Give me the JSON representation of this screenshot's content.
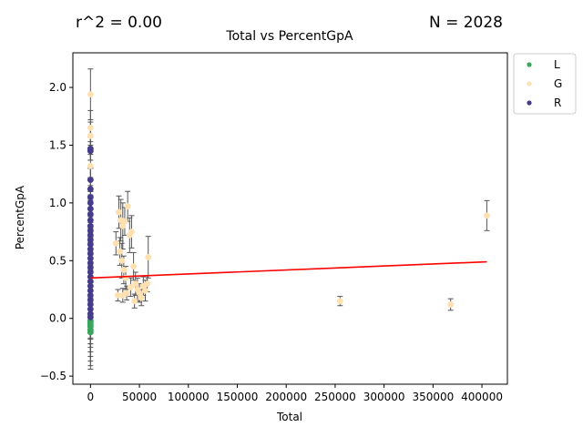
{
  "chart_data": {
    "type": "scatter",
    "title": "Total vs PercentGpA",
    "r2_text": "r^2 = 0.00",
    "n_text": "N = 2028",
    "xlabel": "Total",
    "ylabel": "PercentGpA",
    "xlim": [
      -18000,
      426000
    ],
    "ylim": [
      -0.57,
      2.3
    ],
    "xticks": [
      0,
      50000,
      100000,
      150000,
      200000,
      250000,
      300000,
      350000,
      400000
    ],
    "yticks": [
      -0.5,
      0.0,
      0.5,
      1.0,
      1.5,
      2.0
    ],
    "ytick_labels": [
      "−0.5",
      "0.0",
      "0.5",
      "1.0",
      "1.5",
      "2.0"
    ],
    "grid": false,
    "legend_position": "outside-top-right",
    "trendline": {
      "x": [
        0,
        405000
      ],
      "y": [
        0.35,
        0.49
      ],
      "color": "#ff0000"
    },
    "error_bar_color": "#555555",
    "series": [
      {
        "name": "L",
        "color": "#3aa55d",
        "points": [
          {
            "x": 0,
            "y": -0.03,
            "err": 0.06
          },
          {
            "x": 0,
            "y": -0.05,
            "err": 0.08
          },
          {
            "x": 0,
            "y": -0.07,
            "err": 0.1
          },
          {
            "x": 0,
            "y": -0.1,
            "err": 0.12
          },
          {
            "x": 0,
            "y": -0.12,
            "err": 0.1
          },
          {
            "x": 0,
            "y": -0.02,
            "err": 0.05
          }
        ]
      },
      {
        "name": "G",
        "color": "#ffe0b0",
        "points": [
          {
            "x": 0,
            "y": 1.94,
            "err": 0.22
          },
          {
            "x": 0,
            "y": 1.65,
            "err": 0.15
          },
          {
            "x": 0,
            "y": 1.58,
            "err": 0.12
          },
          {
            "x": 0,
            "y": 1.32,
            "err": 0.1
          },
          {
            "x": 0,
            "y": 1.2,
            "err": 0.1
          },
          {
            "x": 29000,
            "y": 0.92,
            "err": 0.14
          },
          {
            "x": 31000,
            "y": 0.85,
            "err": 0.18
          },
          {
            "x": 33000,
            "y": 0.8,
            "err": 0.2
          },
          {
            "x": 35000,
            "y": 0.84,
            "err": 0.12
          },
          {
            "x": 38000,
            "y": 0.97,
            "err": 0.13
          },
          {
            "x": 40000,
            "y": 0.72,
            "err": 0.15
          },
          {
            "x": 42000,
            "y": 0.75,
            "err": 0.14
          },
          {
            "x": 26000,
            "y": 0.65,
            "err": 0.1
          },
          {
            "x": 30000,
            "y": 0.58,
            "err": 0.12
          },
          {
            "x": 32000,
            "y": 0.5,
            "err": 0.15
          },
          {
            "x": 34000,
            "y": 0.42,
            "err": 0.12
          },
          {
            "x": 36000,
            "y": 0.35,
            "err": 0.1
          },
          {
            "x": 44000,
            "y": 0.45,
            "err": 0.12
          },
          {
            "x": 46000,
            "y": 0.3,
            "err": 0.1
          },
          {
            "x": 48000,
            "y": 0.25,
            "err": 0.1
          },
          {
            "x": 50000,
            "y": 0.22,
            "err": 0.08
          },
          {
            "x": 52000,
            "y": 0.18,
            "err": 0.07
          },
          {
            "x": 54000,
            "y": 0.28,
            "err": 0.08
          },
          {
            "x": 56000,
            "y": 0.24,
            "err": 0.09
          },
          {
            "x": 58000,
            "y": 0.3,
            "err": 0.07
          },
          {
            "x": 59000,
            "y": 0.53,
            "err": 0.18
          },
          {
            "x": 28000,
            "y": 0.2,
            "err": 0.05
          },
          {
            "x": 33000,
            "y": 0.2,
            "err": 0.06
          },
          {
            "x": 37000,
            "y": 0.22,
            "err": 0.06
          },
          {
            "x": 41000,
            "y": 0.27,
            "err": 0.08
          },
          {
            "x": 45000,
            "y": 0.15,
            "err": 0.06
          },
          {
            "x": 255000,
            "y": 0.15,
            "err": 0.04
          },
          {
            "x": 368000,
            "y": 0.12,
            "err": 0.05
          },
          {
            "x": 405000,
            "y": 0.89,
            "err": 0.13
          }
        ]
      },
      {
        "name": "R",
        "color": "#453c8c",
        "points": [
          {
            "x": 0,
            "y": 1.47,
            "err": 0.1
          },
          {
            "x": 0,
            "y": 1.45,
            "err": 0.08
          },
          {
            "x": 0,
            "y": 1.2,
            "err": 0.1
          },
          {
            "x": 0,
            "y": 1.12,
            "err": 0.09
          },
          {
            "x": 0,
            "y": 1.05,
            "err": 0.1
          },
          {
            "x": 0,
            "y": 1.0,
            "err": 0.1
          },
          {
            "x": 0,
            "y": 0.95,
            "err": 0.12
          },
          {
            "x": 0,
            "y": 0.9,
            "err": 0.12
          },
          {
            "x": 0,
            "y": 0.85,
            "err": 0.15
          },
          {
            "x": 0,
            "y": 0.8,
            "err": 0.15
          },
          {
            "x": 0,
            "y": 0.76,
            "err": 0.18
          },
          {
            "x": 0,
            "y": 0.72,
            "err": 0.2
          },
          {
            "x": 0,
            "y": 0.68,
            "err": 0.2
          },
          {
            "x": 0,
            "y": 0.64,
            "err": 0.22
          },
          {
            "x": 0,
            "y": 0.6,
            "err": 0.25
          },
          {
            "x": 0,
            "y": 0.56,
            "err": 0.25
          },
          {
            "x": 0,
            "y": 0.52,
            "err": 0.28
          },
          {
            "x": 0,
            "y": 0.48,
            "err": 0.3
          },
          {
            "x": 0,
            "y": 0.44,
            "err": 0.3
          },
          {
            "x": 0,
            "y": 0.4,
            "err": 0.32
          },
          {
            "x": 0,
            "y": 0.36,
            "err": 0.35
          },
          {
            "x": 0,
            "y": 0.32,
            "err": 0.38
          },
          {
            "x": 0,
            "y": 0.28,
            "err": 0.4
          },
          {
            "x": 0,
            "y": 0.24,
            "err": 0.42
          },
          {
            "x": 0,
            "y": 0.2,
            "err": 0.45
          },
          {
            "x": 0,
            "y": 0.16,
            "err": 0.45
          },
          {
            "x": 0,
            "y": 0.12,
            "err": 0.45
          },
          {
            "x": 0,
            "y": 0.08,
            "err": 0.45
          },
          {
            "x": 0,
            "y": 0.04,
            "err": 0.45
          },
          {
            "x": 0,
            "y": 0.01,
            "err": 0.45
          }
        ]
      }
    ]
  }
}
